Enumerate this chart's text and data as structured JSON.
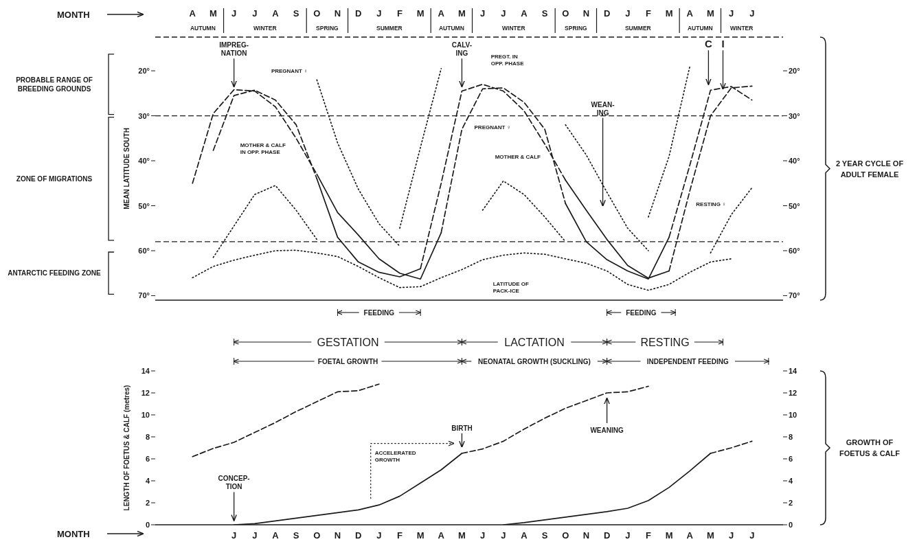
{
  "chart_data": [
    {
      "type": "line",
      "xlabel": "MONTH",
      "ylabel": "MEAN LATITUDE SOUTH",
      "categories": [
        "A",
        "M",
        "J",
        "J",
        "A",
        "S",
        "O",
        "N",
        "D",
        "J",
        "F",
        "M",
        "A",
        "M",
        "J",
        "J",
        "A",
        "S",
        "O",
        "N",
        "D",
        "J",
        "F",
        "M",
        "A",
        "M",
        "J",
        "J"
      ],
      "ylim": [
        71,
        12.5
      ],
      "yticks": [
        {
          "value": 20,
          "label": "20°"
        },
        {
          "value": 30,
          "label": "30°"
        },
        {
          "value": 40,
          "label": "40°"
        },
        {
          "value": 50,
          "label": "50°"
        },
        {
          "value": 60,
          "label": "60°"
        },
        {
          "value": 70,
          "label": "70°"
        }
      ],
      "y2lim": [
        71,
        12.5
      ],
      "y2ticks": [
        {
          "value": 20,
          "label": "20°"
        },
        {
          "value": 30,
          "label": "30°"
        },
        {
          "value": 40,
          "label": "40°"
        },
        {
          "value": 50,
          "label": "50°"
        },
        {
          "value": 60,
          "label": "60°"
        },
        {
          "value": 70,
          "label": "70°"
        }
      ],
      "series": [
        {
          "color": "#1a1a1a",
          "line_style": "dashed",
          "values": [
            null,
            37.7,
            25.5,
            24.3,
            26.5,
            32,
            44,
            null,
            null,
            null,
            null,
            64,
            45,
            24.5,
            23,
            24.5,
            28.9,
            36.3,
            44.3,
            null,
            null,
            null,
            null,
            64.5,
            46.7,
            30,
            23.8,
            23.4
          ]
        },
        {
          "color": "#1a1a1a",
          "line_style": "solid",
          "values": [
            null,
            null,
            null,
            null,
            null,
            null,
            44,
            57,
            62.5,
            64.8,
            65.8,
            64,
            null,
            null,
            null,
            null,
            null,
            null,
            44.3,
            51,
            57.5,
            63.3,
            66.1,
            64.5,
            null,
            null,
            null,
            null
          ]
        },
        {
          "color": "#1a1a1a",
          "line_style": "dashed",
          "values": [
            45,
            29.5,
            24.2,
            24.5,
            28,
            35,
            43,
            null,
            null,
            null,
            null,
            null,
            56,
            33,
            24,
            23.8,
            27,
            33,
            49.5,
            null,
            null,
            null,
            null,
            57,
            41,
            24.3,
            23.5,
            26.5
          ]
        },
        {
          "color": "#1a1a1a",
          "line_style": "solid",
          "values": [
            null,
            null,
            null,
            null,
            null,
            null,
            43,
            51.5,
            56.5,
            61.8,
            65,
            66.3,
            56,
            null,
            null,
            null,
            null,
            null,
            49.5,
            58,
            62,
            64.5,
            66.3,
            57,
            null,
            null,
            null,
            null
          ]
        },
        {
          "color": "#1a1a1a",
          "line_style": "dotted",
          "values": [
            null,
            null,
            null,
            null,
            null,
            null,
            22,
            36,
            46.3,
            54,
            59,
            null,
            null,
            null,
            null,
            null,
            null,
            null,
            32,
            38.7,
            47,
            55,
            60,
            null,
            null,
            null,
            null,
            null
          ]
        },
        {
          "color": "#1a1a1a",
          "line_style": "dotted",
          "values": [
            null,
            null,
            null,
            null,
            null,
            null,
            null,
            null,
            null,
            null,
            55,
            37,
            19.5,
            null,
            null,
            null,
            null,
            null,
            null,
            null,
            null,
            null,
            52.5,
            39,
            19,
            null,
            null,
            null
          ]
        },
        {
          "color": "#1a1a1a",
          "line_style": "dotted",
          "values": [
            null,
            61.5,
            54.5,
            47.5,
            45.5,
            51,
            57.5,
            null,
            null,
            null,
            null,
            null,
            null,
            null,
            51,
            44.5,
            47.5,
            52.5,
            58,
            null,
            null,
            null,
            null,
            null,
            null,
            60.5,
            52,
            46
          ]
        },
        {
          "color": "#1a1a1a",
          "line_style": "dotted",
          "values": [
            66,
            63.5,
            62.1,
            61,
            60,
            59.9,
            60.5,
            61.3,
            63.5,
            66,
            68.2,
            68,
            66,
            64.2,
            62,
            61,
            60.5,
            60.8,
            61.8,
            62.8,
            64.5,
            67.5,
            68.8,
            67.5,
            64.8,
            62.5,
            61.8,
            null
          ]
        }
      ],
      "ref_lines": [
        {
          "axis": "y",
          "value": 30,
          "line_style": "dashed"
        },
        {
          "axis": "y",
          "value": 58,
          "line_style": "dashed"
        }
      ],
      "annotations": [
        "AUTUMN",
        "WINTER",
        "SPRING",
        "SUMMER",
        "AUTUMN",
        "WINTER",
        "SPRING",
        "SUMMER",
        "AUTUMN",
        "WINTER",
        "PROBABLE RANGE OF BREEDING GROUNDS",
        "ZONE OF MIGRATIONS",
        "ANTARCTIC FEEDING ZONE",
        "IMPREG-NATION",
        "CALV-ING",
        "WEAN-ING",
        "C",
        {
          "text": "I",
          "y": 24
        },
        "PREGNANT ♀",
        "MOTHER & CALF IN OPP. PHASE",
        "PREGNANT ♀",
        "PREGT. IN OPP. PHASE",
        "MOTHER & CALF",
        "RESTING ♀",
        "LATITUDE OF PACK-ICE",
        "FEEDING",
        "FEEDING",
        "2 YEAR CYCLE OF ADULT FEMALE"
      ]
    },
    {
      "type": "line",
      "xlabel": "MONTH",
      "ylabel": "LENGTH OF FOETUS & CALF (metres)",
      "categories": [
        null,
        null,
        "J",
        "J",
        "A",
        "S",
        "O",
        "N",
        "D",
        "J",
        "F",
        "M",
        "A",
        "M",
        "J",
        "J",
        "A",
        "S",
        "O",
        "N",
        "D",
        "J",
        "F",
        "M",
        "A",
        "M",
        "J",
        "J"
      ],
      "ylim": [
        0,
        14
      ],
      "yticks": [
        0,
        2,
        4,
        6,
        8,
        10,
        12,
        14
      ],
      "y2lim": [
        0,
        14
      ],
      "y2ticks": [
        0,
        2,
        4,
        6,
        8,
        10,
        12,
        14
      ],
      "series": [
        {
          "color": "#1a1a1a",
          "line_style": "dashed",
          "values": [
            6.2,
            6.95,
            7.5,
            8.4,
            9.3,
            10.3,
            11.2,
            12.1,
            12.2,
            12.8,
            null,
            null,
            null,
            6.5,
            6.9,
            7.6,
            8.7,
            9.7,
            10.6,
            11.3,
            12,
            12.1,
            12.6,
            null,
            null,
            6.5,
            7,
            7.6
          ]
        },
        {
          "color": "#1a1a1a",
          "line_style": "solid",
          "values": [
            null,
            null,
            0,
            0.1,
            0.35,
            0.6,
            0.85,
            1.1,
            1.35,
            1.8,
            2.6,
            3.8,
            5.0,
            6.5,
            null,
            0,
            0.2,
            0.45,
            0.7,
            0.95,
            1.2,
            1.5,
            2.2,
            3.4,
            4.9,
            6.5,
            null,
            null
          ]
        }
      ],
      "annotations": [
        "GESTATION",
        "LACTATION",
        "RESTING",
        "FOETAL GROWTH",
        "NEONATAL GROWTH (SUCKLING)",
        "INDEPENDENT FEEDING",
        "CONCEP-TION",
        "BIRTH",
        "WEANING",
        "ACCELERATED GROWTH",
        "GROWTH OF FOETUS & CALF"
      ]
    }
  ]
}
